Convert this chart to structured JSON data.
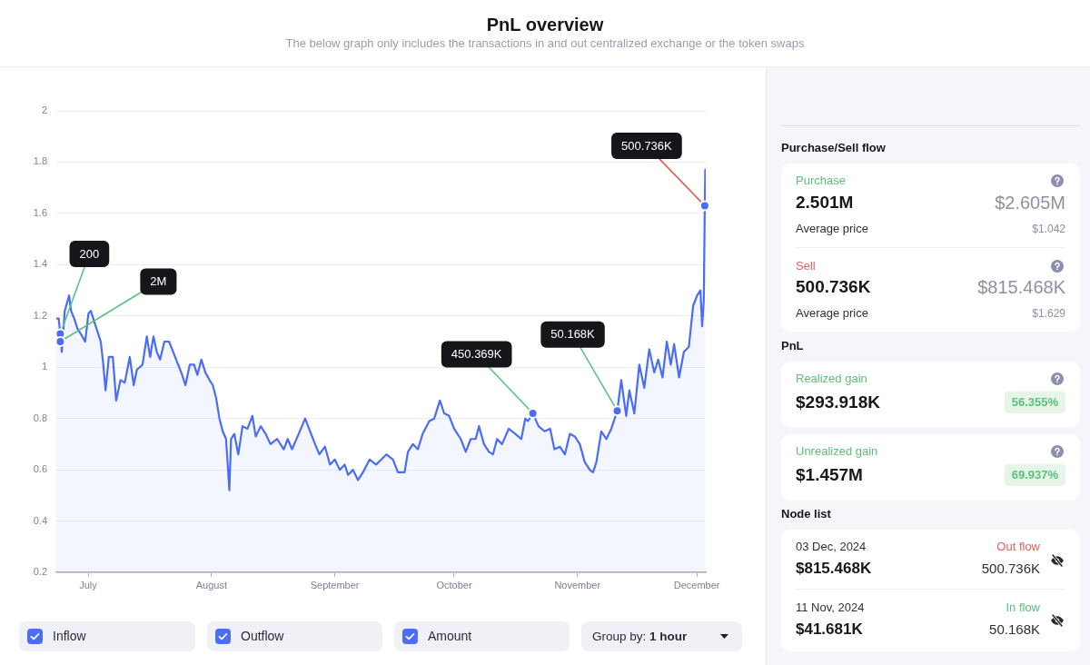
{
  "chart_data": [
    {
      "type": "area",
      "title": "PnL overview",
      "subtitle": "The below graph only includes the transactions in and out centralized exchange or the token swaps",
      "color": "#4a6cf7",
      "x": [
        "2024-06-23",
        "2024-06-23T15:00",
        "2024-06-24T09:00",
        "2024-06-25T03:00",
        "2024-06-26T05:00",
        "2024-06-26T17:00",
        "2024-06-27T12:00",
        "2024-06-28T08:00",
        "2024-06-29T04:00",
        "2024-06-30T06:00",
        "2024-07-01T02:00",
        "2024-07-01T16:00",
        "2024-07-02T22:00",
        "2024-07-04T04:00",
        "2024-07-04T18:00",
        "2024-07-05T09:00",
        "2024-07-06T05:00",
        "2024-07-07T05:00",
        "2024-07-08T01:00",
        "2024-07-09T03:00",
        "2024-07-10T05:00",
        "2024-07-11T11:00",
        "2024-07-12T11:00",
        "2024-07-13T06:00",
        "2024-07-14T16:00",
        "2024-07-15T18:00",
        "2024-07-16T14:00",
        "2024-07-17T10:00",
        "2024-07-18T06:00",
        "2024-07-19T02:00",
        "2024-07-20T04:00",
        "2024-07-21T08:00",
        "2024-07-22T09:00",
        "2024-07-23T15:00",
        "2024-07-24T15:00",
        "2024-07-25T11:00",
        "2024-07-26T13:00",
        "2024-07-27T15:00",
        "2024-07-28T11:00",
        "2024-07-29T11:00",
        "2024-07-30T11:00",
        "2024-07-31T12:00",
        "2024-08-01T08:00",
        "2024-08-02T04:00",
        "2024-08-03",
        "2024-08-03T20:00",
        "2024-08-04T16:00",
        "2024-08-05T12:00",
        "2024-08-05T22:00",
        "2024-08-06T18:00",
        "2024-08-07T18:00",
        "2024-08-08T19:00",
        "2024-08-10T01:00",
        "2024-08-11T07:00",
        "2024-08-12T03:00",
        "2024-08-13T09:00",
        "2024-08-14T15:00",
        "2024-08-15T20:00",
        "2024-08-17T12:00",
        "2024-08-19T04:00",
        "2024-08-20T04:00",
        "2024-08-21T06:00",
        "2024-08-22T22:00",
        "2024-08-24T13:00",
        "2024-08-25T19:00",
        "2024-08-27T01:00",
        "2024-08-28T03:00",
        "2024-08-29T13:00",
        "2024-08-30T19:00",
        "2024-09-01",
        "2024-09-02T06:00",
        "2024-09-03T12:00",
        "2024-09-04T08:00",
        "2024-09-05T14:00",
        "2024-09-06T20:00",
        "2024-09-08T02:00",
        "2024-09-09T18:00",
        "2024-09-11T09:00",
        "2024-09-13T23:00",
        "2024-09-15T15:00",
        "2024-09-16T21:00",
        "2024-09-18T13:00",
        "2024-09-19T09:00",
        "2024-09-20T15:00",
        "2024-09-21T21:00",
        "2024-09-23T02:00",
        "2024-09-24T18:00",
        "2024-09-26",
        "2024-09-27T10:00",
        "2024-09-28T12:00",
        "2024-09-29T18:00",
        "2024-10-01",
        "2024-10-02T16:00",
        "2024-10-03T22:00",
        "2024-10-05T04:00",
        "2024-10-06T10:00",
        "2024-10-07T06:00",
        "2024-10-08T12:00",
        "2024-10-09T18:00",
        "2024-10-10T18:00",
        "2024-10-11T19:00",
        "2024-10-13T01:00",
        "2024-10-14T17:00",
        "2024-10-16T09:00",
        "2024-10-17T21:00",
        "2024-10-18T21:00",
        "2024-10-19T13:00",
        "2024-10-20T19:00",
        "2024-10-22T05:00",
        "2024-10-23T17:00",
        "2024-10-25T03:00",
        "2024-10-26T05:00",
        "2024-10-27T14:00",
        "2024-10-28T20:00",
        "2024-10-30T02:00",
        "2024-10-31T08:00",
        "2024-11-01T14:00",
        "2024-11-02T20:00",
        "2024-11-04T02:00",
        "2024-11-04T22:00",
        "2024-11-05T18:00",
        "2024-11-07",
        "2024-11-08T06:00",
        "2024-11-09T12:00",
        "2024-11-11",
        "2024-11-12",
        "2024-11-13T06:00",
        "2024-11-14T01:00",
        "2024-11-15T07:00",
        "2024-11-16T13:00",
        "2024-11-17T19:00",
        "2024-11-19T01:00",
        "2024-11-20T07:00",
        "2024-11-21T07:00",
        "2024-11-22T09:00",
        "2024-11-23T11:00",
        "2024-11-24T11:00",
        "2024-11-25T07:00",
        "2024-11-26T13:00",
        "2024-11-27T18:00",
        "2024-11-29",
        "2024-11-30T02:00",
        "2024-12-01T02:00",
        "2024-12-01T22:00",
        "2024-12-02T08:00",
        "2024-12-02T18:00",
        "2024-12-03",
        "2024-12-03T03:00"
      ],
      "values": [
        1.19,
        1.19,
        1.06,
        1.22,
        1.28,
        1.22,
        1.19,
        1.15,
        1.13,
        1.1,
        1.21,
        1.22,
        1.16,
        1.1,
        1.02,
        0.91,
        1.04,
        1.04,
        0.87,
        0.95,
        0.94,
        1.04,
        0.93,
        0.99,
        1.01,
        1.12,
        1.04,
        1.12,
        1.06,
        1.03,
        1.1,
        1.1,
        1.06,
        1.01,
        0.97,
        0.93,
        1.01,
        1.01,
        0.97,
        1.03,
        0.98,
        0.95,
        0.93,
        0.88,
        0.8,
        0.75,
        0.72,
        0.52,
        0.72,
        0.74,
        0.66,
        0.77,
        0.76,
        0.81,
        0.73,
        0.77,
        0.74,
        0.7,
        0.72,
        0.68,
        0.72,
        0.68,
        0.74,
        0.8,
        0.75,
        0.7,
        0.66,
        0.69,
        0.62,
        0.64,
        0.6,
        0.62,
        0.58,
        0.6,
        0.56,
        0.59,
        0.64,
        0.62,
        0.66,
        0.64,
        0.59,
        0.59,
        0.67,
        0.7,
        0.68,
        0.74,
        0.79,
        0.8,
        0.87,
        0.82,
        0.81,
        0.76,
        0.72,
        0.67,
        0.72,
        0.72,
        0.77,
        0.7,
        0.67,
        0.66,
        0.72,
        0.7,
        0.76,
        0.74,
        0.72,
        0.8,
        0.79,
        0.82,
        0.77,
        0.75,
        0.76,
        0.68,
        0.69,
        0.66,
        0.74,
        0.73,
        0.7,
        0.63,
        0.6,
        0.59,
        0.63,
        0.75,
        0.72,
        0.76,
        0.83,
        0.95,
        0.81,
        0.91,
        0.82,
        1.01,
        0.92,
        1.07,
        0.98,
        1.03,
        0.96,
        1.1,
        1.01,
        1.09,
        0.96,
        1.06,
        1.08,
        1.24,
        1.28,
        1.3,
        1.16,
        1.26,
        1.63,
        1.77
      ],
      "xlim": [
        "2024-06-23",
        "2024-12-03T06:00"
      ],
      "xticks": [
        {
          "value": "2024-07-01",
          "label": "July"
        },
        {
          "value": "2024-08-01",
          "label": "August"
        },
        {
          "value": "2024-09-01",
          "label": "September"
        },
        {
          "value": "2024-10-01",
          "label": "October"
        },
        {
          "value": "2024-11-01",
          "label": "November"
        },
        {
          "value": "2024-12-01",
          "label": "December"
        }
      ],
      "ylim": [
        0.2,
        2
      ],
      "yticks": [
        0.2,
        0.4,
        0.6,
        0.8,
        1,
        1.2,
        1.4,
        1.6,
        1.8,
        2
      ],
      "grid": "y",
      "marker": "none",
      "annotations": [
        {
          "text": "200",
          "x": "2024-06-24",
          "y": 1.13
        },
        {
          "text": "2M",
          "x": "2024-06-24",
          "y": 1.1
        },
        {
          "text": "450.369K",
          "x": "2024-10-20T19:00",
          "y": 0.82
        },
        {
          "text": "50.168K",
          "x": "2024-11-11",
          "y": 0.83
        },
        {
          "text": "500.736K",
          "x": "2024-12-03",
          "y": 1.63
        }
      ]
    },
    {
      "type": "other",
      "annotations": [
        "Inflow",
        "Outflow",
        "Amount",
        "Group by:",
        "1 hour"
      ]
    },
    {
      "type": "other",
      "annotations": [
        "Purchase/Sell flow",
        "Purchase",
        "2.501M",
        "$2.605M",
        "Average price",
        "$1.042",
        "Sell",
        "500.736K",
        "$815.468K",
        "Average price",
        "$1.629",
        "PnL",
        "Realized gain",
        "$293.918K",
        "56.355%",
        "Unrealized gain",
        "$1.457M",
        "69.937%",
        "Node list",
        "03 Dec, 2024",
        "Out flow",
        "$815.468K",
        "500.736K",
        "11 Nov, 2024",
        "In flow",
        "$41.681K",
        "50.168K"
      ]
    }
  ]
}
